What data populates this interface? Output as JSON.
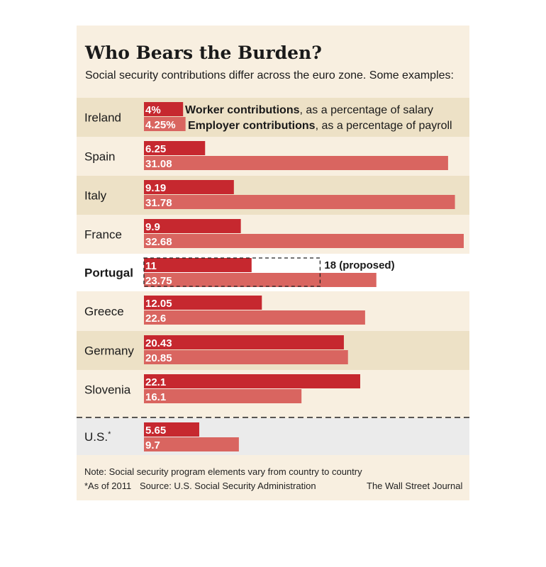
{
  "title": "Who Bears the Burden?",
  "subtitle": "Social security contributions differ across the euro zone.  Some examples:",
  "note": "Note: Social security program elements vary from country to country",
  "as_of": "*As of 2011",
  "source": "Source: U.S. Social Security Administration",
  "publisher": "The Wall Street Journal",
  "colors": {
    "worker": "#c6282f",
    "employer": "#d96560",
    "band_shaded": "#ede1c6",
    "band_light": "#f8efe0",
    "band_highlight": "#ffffff",
    "band_us": "#ebebeb"
  },
  "chart_data": {
    "type": "bar",
    "orientation": "horizontal",
    "categories": [
      "Ireland",
      "Spain",
      "Italy",
      "France",
      "Portugal",
      "Greece",
      "Germany",
      "Slovenia",
      "U.S.*"
    ],
    "category_labels": [
      "Ireland",
      "Spain",
      "Italy",
      "France",
      "Portugal",
      "Greece",
      "Germany",
      "Slovenia",
      "U.S."
    ],
    "highlight_category": "Portugal",
    "series": [
      {
        "name": "Worker contributions",
        "legend_suffix": ", as a percentage of salary",
        "values": [
          4,
          6.25,
          9.19,
          9.9,
          11,
          12.05,
          20.43,
          22.1,
          5.65
        ],
        "labels": [
          "4%",
          "6.25",
          "9.19",
          "9.9",
          "11",
          "12.05",
          "20.43",
          "22.1",
          "5.65"
        ]
      },
      {
        "name": "Employer contributions",
        "legend_suffix": ", as a percentage of payroll",
        "values": [
          4.25,
          31.08,
          31.78,
          32.68,
          23.75,
          22.6,
          20.85,
          16.1,
          9.7
        ],
        "labels": [
          "4.25%",
          "31.08",
          "31.78",
          "32.68",
          "23.75",
          "22.6",
          "20.85",
          "16.1",
          "9.7"
        ]
      }
    ],
    "annotations": [
      {
        "category": "Portugal",
        "series": "Worker contributions",
        "value": 18,
        "text": "18 (proposed)",
        "style": "dashed outline"
      }
    ],
    "footnote_marker": {
      "category": "U.S.*",
      "marker": "*"
    },
    "xlim": [
      0,
      32.68
    ],
    "grid": false,
    "legend": "inline in first row"
  }
}
